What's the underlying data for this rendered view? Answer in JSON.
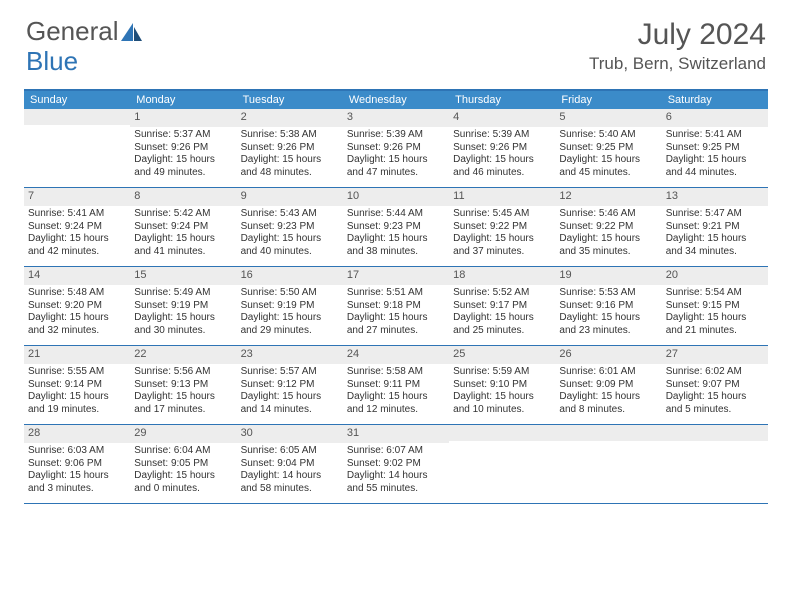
{
  "logo": {
    "word1": "General",
    "word2": "Blue"
  },
  "title": "July 2024",
  "location": "Trub, Bern, Switzerland",
  "colors": {
    "header_bar": "#3b8bc9",
    "border": "#2e74b5",
    "daynum_bg": "#ededed",
    "text": "#333333",
    "muted": "#555555"
  },
  "weekdays": [
    "Sunday",
    "Monday",
    "Tuesday",
    "Wednesday",
    "Thursday",
    "Friday",
    "Saturday"
  ],
  "weeks": [
    [
      {
        "n": "",
        "sunrise": "",
        "sunset": "",
        "daylight1": "",
        "daylight2": ""
      },
      {
        "n": "1",
        "sunrise": "Sunrise: 5:37 AM",
        "sunset": "Sunset: 9:26 PM",
        "daylight1": "Daylight: 15 hours",
        "daylight2": "and 49 minutes."
      },
      {
        "n": "2",
        "sunrise": "Sunrise: 5:38 AM",
        "sunset": "Sunset: 9:26 PM",
        "daylight1": "Daylight: 15 hours",
        "daylight2": "and 48 minutes."
      },
      {
        "n": "3",
        "sunrise": "Sunrise: 5:39 AM",
        "sunset": "Sunset: 9:26 PM",
        "daylight1": "Daylight: 15 hours",
        "daylight2": "and 47 minutes."
      },
      {
        "n": "4",
        "sunrise": "Sunrise: 5:39 AM",
        "sunset": "Sunset: 9:26 PM",
        "daylight1": "Daylight: 15 hours",
        "daylight2": "and 46 minutes."
      },
      {
        "n": "5",
        "sunrise": "Sunrise: 5:40 AM",
        "sunset": "Sunset: 9:25 PM",
        "daylight1": "Daylight: 15 hours",
        "daylight2": "and 45 minutes."
      },
      {
        "n": "6",
        "sunrise": "Sunrise: 5:41 AM",
        "sunset": "Sunset: 9:25 PM",
        "daylight1": "Daylight: 15 hours",
        "daylight2": "and 44 minutes."
      }
    ],
    [
      {
        "n": "7",
        "sunrise": "Sunrise: 5:41 AM",
        "sunset": "Sunset: 9:24 PM",
        "daylight1": "Daylight: 15 hours",
        "daylight2": "and 42 minutes."
      },
      {
        "n": "8",
        "sunrise": "Sunrise: 5:42 AM",
        "sunset": "Sunset: 9:24 PM",
        "daylight1": "Daylight: 15 hours",
        "daylight2": "and 41 minutes."
      },
      {
        "n": "9",
        "sunrise": "Sunrise: 5:43 AM",
        "sunset": "Sunset: 9:23 PM",
        "daylight1": "Daylight: 15 hours",
        "daylight2": "and 40 minutes."
      },
      {
        "n": "10",
        "sunrise": "Sunrise: 5:44 AM",
        "sunset": "Sunset: 9:23 PM",
        "daylight1": "Daylight: 15 hours",
        "daylight2": "and 38 minutes."
      },
      {
        "n": "11",
        "sunrise": "Sunrise: 5:45 AM",
        "sunset": "Sunset: 9:22 PM",
        "daylight1": "Daylight: 15 hours",
        "daylight2": "and 37 minutes."
      },
      {
        "n": "12",
        "sunrise": "Sunrise: 5:46 AM",
        "sunset": "Sunset: 9:22 PM",
        "daylight1": "Daylight: 15 hours",
        "daylight2": "and 35 minutes."
      },
      {
        "n": "13",
        "sunrise": "Sunrise: 5:47 AM",
        "sunset": "Sunset: 9:21 PM",
        "daylight1": "Daylight: 15 hours",
        "daylight2": "and 34 minutes."
      }
    ],
    [
      {
        "n": "14",
        "sunrise": "Sunrise: 5:48 AM",
        "sunset": "Sunset: 9:20 PM",
        "daylight1": "Daylight: 15 hours",
        "daylight2": "and 32 minutes."
      },
      {
        "n": "15",
        "sunrise": "Sunrise: 5:49 AM",
        "sunset": "Sunset: 9:19 PM",
        "daylight1": "Daylight: 15 hours",
        "daylight2": "and 30 minutes."
      },
      {
        "n": "16",
        "sunrise": "Sunrise: 5:50 AM",
        "sunset": "Sunset: 9:19 PM",
        "daylight1": "Daylight: 15 hours",
        "daylight2": "and 29 minutes."
      },
      {
        "n": "17",
        "sunrise": "Sunrise: 5:51 AM",
        "sunset": "Sunset: 9:18 PM",
        "daylight1": "Daylight: 15 hours",
        "daylight2": "and 27 minutes."
      },
      {
        "n": "18",
        "sunrise": "Sunrise: 5:52 AM",
        "sunset": "Sunset: 9:17 PM",
        "daylight1": "Daylight: 15 hours",
        "daylight2": "and 25 minutes."
      },
      {
        "n": "19",
        "sunrise": "Sunrise: 5:53 AM",
        "sunset": "Sunset: 9:16 PM",
        "daylight1": "Daylight: 15 hours",
        "daylight2": "and 23 minutes."
      },
      {
        "n": "20",
        "sunrise": "Sunrise: 5:54 AM",
        "sunset": "Sunset: 9:15 PM",
        "daylight1": "Daylight: 15 hours",
        "daylight2": "and 21 minutes."
      }
    ],
    [
      {
        "n": "21",
        "sunrise": "Sunrise: 5:55 AM",
        "sunset": "Sunset: 9:14 PM",
        "daylight1": "Daylight: 15 hours",
        "daylight2": "and 19 minutes."
      },
      {
        "n": "22",
        "sunrise": "Sunrise: 5:56 AM",
        "sunset": "Sunset: 9:13 PM",
        "daylight1": "Daylight: 15 hours",
        "daylight2": "and 17 minutes."
      },
      {
        "n": "23",
        "sunrise": "Sunrise: 5:57 AM",
        "sunset": "Sunset: 9:12 PM",
        "daylight1": "Daylight: 15 hours",
        "daylight2": "and 14 minutes."
      },
      {
        "n": "24",
        "sunrise": "Sunrise: 5:58 AM",
        "sunset": "Sunset: 9:11 PM",
        "daylight1": "Daylight: 15 hours",
        "daylight2": "and 12 minutes."
      },
      {
        "n": "25",
        "sunrise": "Sunrise: 5:59 AM",
        "sunset": "Sunset: 9:10 PM",
        "daylight1": "Daylight: 15 hours",
        "daylight2": "and 10 minutes."
      },
      {
        "n": "26",
        "sunrise": "Sunrise: 6:01 AM",
        "sunset": "Sunset: 9:09 PM",
        "daylight1": "Daylight: 15 hours",
        "daylight2": "and 8 minutes."
      },
      {
        "n": "27",
        "sunrise": "Sunrise: 6:02 AM",
        "sunset": "Sunset: 9:07 PM",
        "daylight1": "Daylight: 15 hours",
        "daylight2": "and 5 minutes."
      }
    ],
    [
      {
        "n": "28",
        "sunrise": "Sunrise: 6:03 AM",
        "sunset": "Sunset: 9:06 PM",
        "daylight1": "Daylight: 15 hours",
        "daylight2": "and 3 minutes."
      },
      {
        "n": "29",
        "sunrise": "Sunrise: 6:04 AM",
        "sunset": "Sunset: 9:05 PM",
        "daylight1": "Daylight: 15 hours",
        "daylight2": "and 0 minutes."
      },
      {
        "n": "30",
        "sunrise": "Sunrise: 6:05 AM",
        "sunset": "Sunset: 9:04 PM",
        "daylight1": "Daylight: 14 hours",
        "daylight2": "and 58 minutes."
      },
      {
        "n": "31",
        "sunrise": "Sunrise: 6:07 AM",
        "sunset": "Sunset: 9:02 PM",
        "daylight1": "Daylight: 14 hours",
        "daylight2": "and 55 minutes."
      },
      {
        "n": "",
        "sunrise": "",
        "sunset": "",
        "daylight1": "",
        "daylight2": ""
      },
      {
        "n": "",
        "sunrise": "",
        "sunset": "",
        "daylight1": "",
        "daylight2": ""
      },
      {
        "n": "",
        "sunrise": "",
        "sunset": "",
        "daylight1": "",
        "daylight2": ""
      }
    ]
  ]
}
